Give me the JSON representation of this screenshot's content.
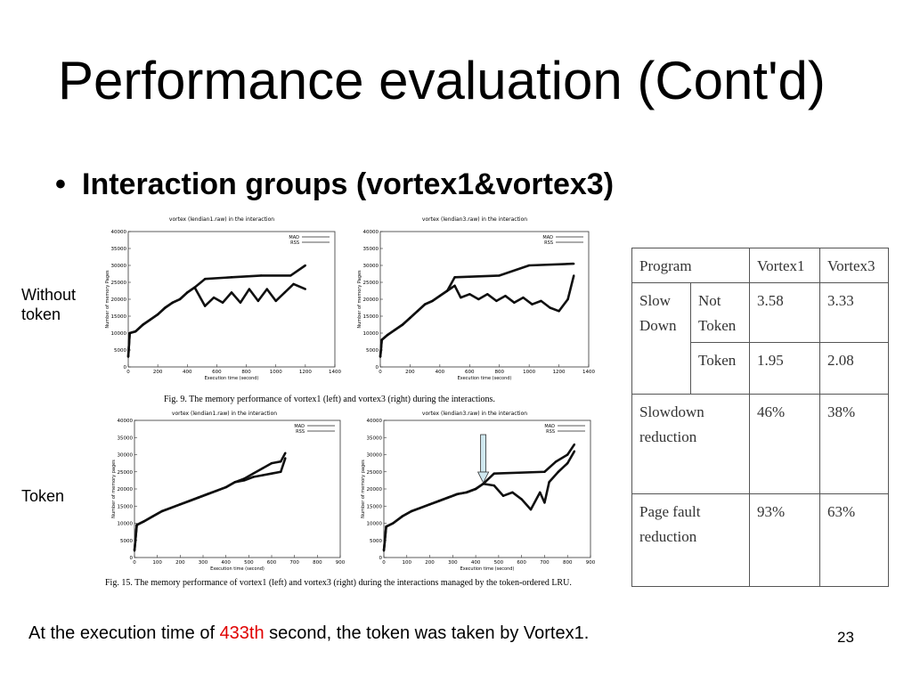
{
  "slide": {
    "title": "Performance evaluation (Cont'd)",
    "bullet": "Interaction groups (vortex1&vortex3)",
    "label_without": "Without token",
    "label_token": "Token",
    "footer_before": "At the execution time of ",
    "footer_highlight": "433th",
    "footer_after": " second, the token was taken by Vortex1.",
    "page_number": "23",
    "highlight_color": "#e00000"
  },
  "figures": {
    "fig9_caption": "Fig. 9.  The memory performance of vortex1 (left) and vortex3 (right) during the interactions.",
    "fig15_caption": "Fig. 15.  The memory performance of vortex1 (left) and vortex3 (right) during the interactions managed by the token-ordered LRU."
  },
  "table": {
    "header": [
      "Program",
      "Vortex1",
      "Vortex3"
    ],
    "slow_down": "Slow Down",
    "not_token": "Not Token",
    "token": "Token",
    "not_token_values": [
      "3.58",
      "3.33"
    ],
    "token_values": [
      "1.95",
      "2.08"
    ],
    "slowdown_reduction": "Slowdown reduction",
    "slowdown_values": [
      "46%",
      "38%"
    ],
    "pagefault_reduction": "Page fault reduction",
    "pagefault_values": [
      "93%",
      "63%"
    ]
  },
  "chart_data": [
    {
      "type": "line",
      "title": "vortex (lendian1.raw) in the interaction",
      "xlabel": "Execution time (second)",
      "ylabel": "Number of memory Pages",
      "xlim": [
        0,
        1400
      ],
      "ylim": [
        0,
        40000
      ],
      "xticks": [
        0,
        200,
        400,
        600,
        800,
        1000,
        1200,
        1400
      ],
      "yticks": [
        0,
        5000,
        10000,
        15000,
        20000,
        25000,
        30000,
        35000,
        40000
      ],
      "legend": "top-right",
      "series": [
        {
          "name": "MAD",
          "x": [
            0,
            10,
            50,
            100,
            150,
            200,
            250,
            300,
            350,
            400,
            450,
            520,
            700,
            900,
            1100,
            1200
          ],
          "y": [
            3000,
            10000,
            10500,
            12500,
            14000,
            15500,
            17500,
            19000,
            20000,
            22000,
            23500,
            26000,
            26500,
            27000,
            27000,
            30000
          ]
        },
        {
          "name": "RSS",
          "x": [
            0,
            10,
            50,
            100,
            150,
            200,
            250,
            300,
            350,
            400,
            450,
            520,
            580,
            640,
            700,
            760,
            820,
            880,
            940,
            1000,
            1060,
            1120,
            1200
          ],
          "y": [
            3000,
            10000,
            10500,
            12500,
            14000,
            15500,
            17500,
            19000,
            20000,
            22000,
            23500,
            18000,
            20500,
            19000,
            22000,
            19000,
            23000,
            19500,
            23000,
            19500,
            22000,
            24500,
            23000
          ]
        }
      ]
    },
    {
      "type": "line",
      "title": "vortex (lendian3.raw) in the interaction",
      "xlabel": "Execution time (second)",
      "ylabel": "Number of memory Pages",
      "xlim": [
        0,
        1400
      ],
      "ylim": [
        0,
        40000
      ],
      "xticks": [
        0,
        200,
        400,
        600,
        800,
        1000,
        1200,
        1400
      ],
      "yticks": [
        0,
        5000,
        10000,
        15000,
        20000,
        25000,
        30000,
        35000,
        40000
      ],
      "legend": "top-right",
      "series": [
        {
          "name": "MAD",
          "x": [
            0,
            10,
            50,
            100,
            150,
            200,
            250,
            300,
            350,
            400,
            450,
            500,
            800,
            1000,
            1300
          ],
          "y": [
            3000,
            8000,
            9500,
            11000,
            12500,
            14500,
            16500,
            18500,
            19500,
            21000,
            22500,
            26500,
            27000,
            30000,
            30500
          ]
        },
        {
          "name": "RSS",
          "x": [
            0,
            10,
            50,
            100,
            150,
            200,
            250,
            300,
            350,
            400,
            450,
            500,
            540,
            600,
            660,
            720,
            780,
            840,
            900,
            960,
            1020,
            1080,
            1140,
            1200,
            1260,
            1300
          ],
          "y": [
            3000,
            8000,
            9500,
            11000,
            12500,
            14500,
            16500,
            18500,
            19500,
            21000,
            22500,
            24000,
            20500,
            21500,
            20000,
            21500,
            19500,
            21000,
            19000,
            20500,
            18500,
            19500,
            17500,
            16500,
            20000,
            27000
          ]
        }
      ]
    },
    {
      "type": "line",
      "title": "vortex (lendian1.raw) in the interaction",
      "xlabel": "Execution time (second)",
      "ylabel": "Number of memory pages",
      "xlim": [
        0,
        900
      ],
      "ylim": [
        0,
        40000
      ],
      "xticks": [
        0,
        100,
        200,
        300,
        400,
        500,
        600,
        700,
        800,
        900
      ],
      "yticks": [
        0,
        5000,
        10000,
        15000,
        20000,
        25000,
        30000,
        35000,
        40000
      ],
      "legend": "top-right",
      "series": [
        {
          "name": "MAD",
          "x": [
            0,
            10,
            40,
            80,
            120,
            160,
            200,
            240,
            280,
            320,
            360,
            400,
            440,
            480,
            520,
            560,
            600,
            640,
            660
          ],
          "y": [
            2000,
            9500,
            10500,
            12000,
            13500,
            14500,
            15500,
            16500,
            17500,
            18500,
            19500,
            20500,
            22000,
            23000,
            24500,
            26000,
            27500,
            28000,
            30500
          ]
        },
        {
          "name": "RSS",
          "x": [
            0,
            10,
            40,
            80,
            120,
            160,
            200,
            240,
            280,
            320,
            360,
            400,
            440,
            480,
            520,
            560,
            600,
            640,
            660
          ],
          "y": [
            2000,
            9500,
            10500,
            12000,
            13500,
            14500,
            15500,
            16500,
            17500,
            18500,
            19500,
            20500,
            22000,
            22500,
            23500,
            24000,
            24500,
            25000,
            29000
          ]
        }
      ]
    },
    {
      "type": "line",
      "title": "vortex (lendian3.raw) in the interaction",
      "xlabel": "Execution time (second)",
      "ylabel": "Number of memory pages",
      "xlim": [
        0,
        900
      ],
      "ylim": [
        0,
        40000
      ],
      "xticks": [
        0,
        100,
        200,
        300,
        400,
        500,
        600,
        700,
        800,
        900
      ],
      "yticks": [
        0,
        5000,
        10000,
        15000,
        20000,
        25000,
        30000,
        35000,
        40000
      ],
      "legend": "top-right",
      "series": [
        {
          "name": "MAD",
          "x": [
            0,
            10,
            40,
            80,
            120,
            160,
            200,
            240,
            280,
            320,
            360,
            400,
            433,
            480,
            700,
            750,
            800,
            830
          ],
          "y": [
            2000,
            9000,
            10000,
            12000,
            13500,
            14500,
            15500,
            16500,
            17500,
            18500,
            19000,
            20000,
            21500,
            24500,
            25000,
            28000,
            30000,
            33000
          ]
        },
        {
          "name": "RSS",
          "x": [
            0,
            10,
            40,
            80,
            120,
            160,
            200,
            240,
            280,
            320,
            360,
            400,
            433,
            480,
            520,
            560,
            600,
            640,
            680,
            700,
            720,
            760,
            800,
            830
          ],
          "y": [
            2000,
            9000,
            10000,
            12000,
            13500,
            14500,
            15500,
            16500,
            17500,
            18500,
            19000,
            20000,
            21500,
            21000,
            18000,
            19000,
            17000,
            14000,
            19000,
            16000,
            22000,
            25000,
            27500,
            31000
          ]
        }
      ]
    }
  ]
}
